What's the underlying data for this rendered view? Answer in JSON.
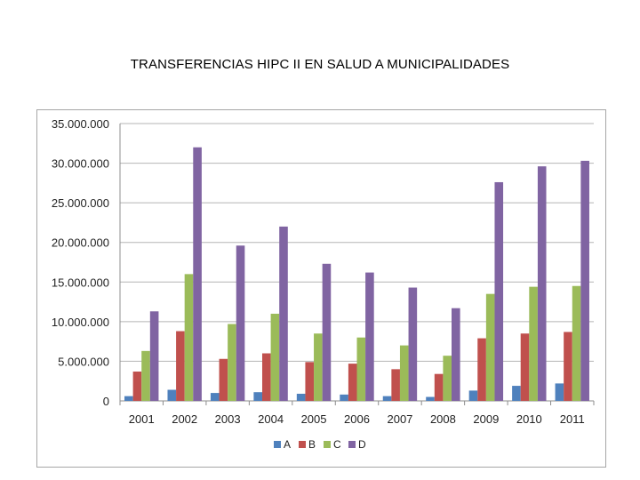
{
  "page": {
    "title": "TRANSFERENCIAS HIPC II EN SALUD A MUNICIPALIDADES"
  },
  "chart_data": {
    "type": "bar",
    "title": "TRANSFERENCIAS HIPC II EN SALUD A MUNICIPALIDADES",
    "xlabel": "",
    "ylabel": "",
    "categories": [
      "2001",
      "2002",
      "2003",
      "2004",
      "2005",
      "2006",
      "2007",
      "2008",
      "2009",
      "2010",
      "2011"
    ],
    "ylim": [
      0,
      35000000
    ],
    "yticks": [
      0,
      5000000,
      10000000,
      15000000,
      20000000,
      25000000,
      30000000,
      35000000
    ],
    "ytick_labels": [
      "0",
      "5.000.000",
      "10.000.000",
      "15.000.000",
      "20.000.000",
      "25.000.000",
      "30.000.000",
      "35.000.000"
    ],
    "grid": "horizontal",
    "legend_position": "bottom",
    "series": [
      {
        "name": "A",
        "color": "#4f81bd",
        "values": [
          600000,
          1400000,
          1000000,
          1100000,
          900000,
          800000,
          600000,
          500000,
          1300000,
          1900000,
          2200000
        ]
      },
      {
        "name": "B",
        "color": "#c0504d",
        "values": [
          3700000,
          8800000,
          5300000,
          6000000,
          4900000,
          4700000,
          4000000,
          3400000,
          7900000,
          8500000,
          8700000
        ]
      },
      {
        "name": "C",
        "color": "#9bbb59",
        "values": [
          6300000,
          16000000,
          9700000,
          11000000,
          8500000,
          8000000,
          7000000,
          5700000,
          13500000,
          14400000,
          14500000
        ]
      },
      {
        "name": "D",
        "color": "#8064a2",
        "values": [
          11300000,
          32000000,
          19600000,
          22000000,
          17300000,
          16200000,
          14300000,
          11700000,
          27600000,
          29600000,
          30300000
        ]
      }
    ]
  }
}
